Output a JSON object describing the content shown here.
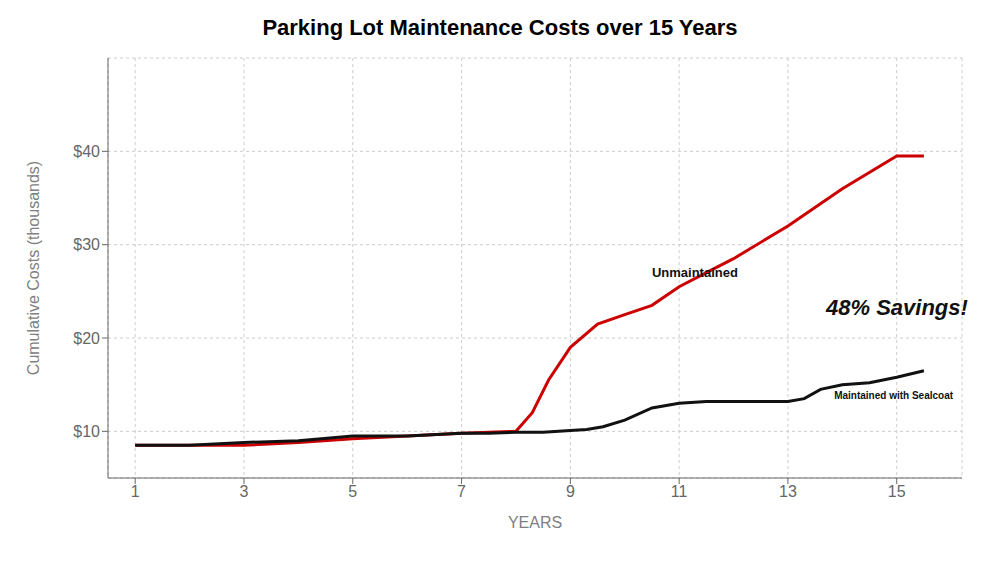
{
  "chart_data": {
    "type": "line",
    "title": "Parking Lot Maintenance Costs over 15 Years",
    "x_label": "YEARS",
    "y_label": "Cumulative Costs (thousands)",
    "xlim": [
      0.5,
      16.2
    ],
    "ylim": [
      5,
      50
    ],
    "xticks": [
      1,
      3,
      5,
      7,
      9,
      11,
      13,
      15
    ],
    "yticks": [
      {
        "value": 10,
        "label": "$10"
      },
      {
        "value": 20,
        "label": "$20"
      },
      {
        "value": 30,
        "label": "$30"
      },
      {
        "value": 40,
        "label": "$40"
      }
    ],
    "grid": true,
    "series": [
      {
        "color": "#cc0000",
        "x": [
          1,
          2,
          3,
          4,
          5,
          6,
          7,
          7.5,
          8,
          8.3,
          8.6,
          9,
          9.5,
          10,
          10.5,
          11,
          11.5,
          12,
          13,
          14,
          15,
          15.5
        ],
        "values": [
          8.5,
          8.5,
          8.5,
          8.8,
          9.2,
          9.5,
          9.8,
          9.9,
          10.0,
          12.0,
          15.5,
          19.0,
          21.5,
          22.5,
          23.5,
          25.5,
          27.0,
          28.5,
          32.0,
          36.0,
          39.5,
          39.5
        ]
      },
      {
        "color": "#111111",
        "x": [
          1,
          2,
          3,
          4,
          5,
          6,
          7,
          7.5,
          8,
          8.5,
          9,
          9.3,
          9.6,
          10,
          10.5,
          11,
          11.5,
          12,
          12.5,
          13,
          13.3,
          13.6,
          14,
          14.5,
          15,
          15.5
        ],
        "values": [
          8.5,
          8.5,
          8.8,
          9.0,
          9.5,
          9.5,
          9.8,
          9.8,
          9.9,
          9.9,
          10.1,
          10.2,
          10.5,
          11.2,
          12.5,
          13.0,
          13.2,
          13.2,
          13.2,
          13.2,
          13.5,
          14.5,
          15.0,
          15.2,
          15.8,
          16.5
        ]
      }
    ],
    "annotations": [
      {
        "text": "Unmaintained",
        "x": 10.5,
        "y": 26.5
      },
      {
        "text": "Maintained with Sealcoat",
        "x": 13.85,
        "y": 13.5
      },
      {
        "text": "48% Savings!",
        "x": 13.7,
        "y": 22.5
      }
    ]
  }
}
